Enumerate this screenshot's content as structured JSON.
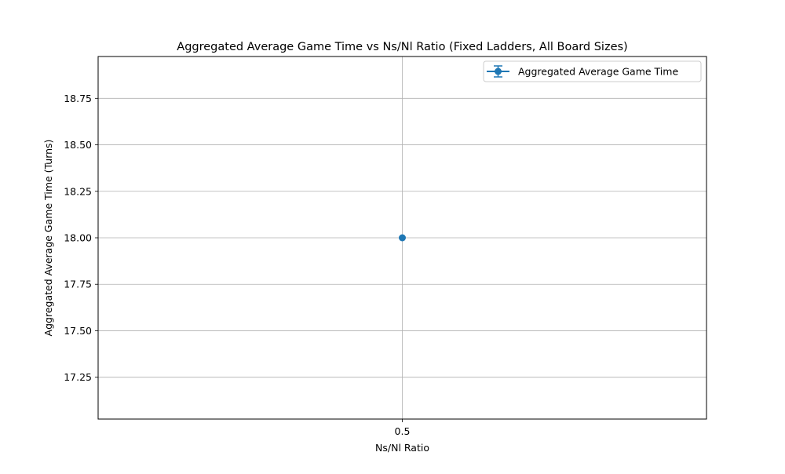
{
  "chart_data": {
    "type": "line",
    "title": "Aggregated Average Game Time vs Ns/Nl Ratio (Fixed Ladders, All Board Sizes)",
    "xlabel": "Ns/Nl Ratio",
    "ylabel": "Aggregated Average Game Time (Turns)",
    "x_categories": [
      "0.5"
    ],
    "xlim": [
      -0.5,
      0.5
    ],
    "ylim": [
      17.025,
      18.975
    ],
    "y_ticks": [
      17.25,
      17.5,
      17.75,
      18.0,
      18.25,
      18.5,
      18.75
    ],
    "y_tick_labels": [
      "17.25",
      "17.50",
      "17.75",
      "18.00",
      "18.25",
      "18.50",
      "18.75"
    ],
    "grid": true,
    "legend_position": "top-right",
    "series": [
      {
        "name": "Aggregated Average Game Time",
        "color": "#1f77b4",
        "marker": "circle",
        "error_bars": true,
        "points": [
          {
            "x": "0.5",
            "y": 18.0,
            "error": 0
          }
        ]
      }
    ]
  }
}
